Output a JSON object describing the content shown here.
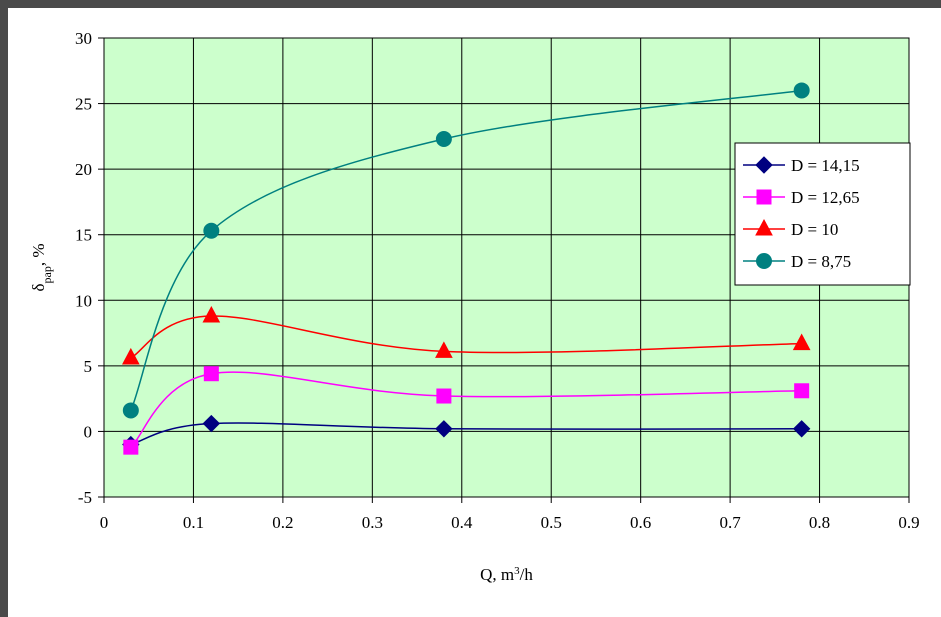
{
  "chart_data": {
    "type": "line",
    "title": "",
    "xlabel": "Q, m³/h",
    "xlabel_parts": {
      "base": "Q, m",
      "sup": "3",
      "tail": "/h"
    },
    "ylabel": "δpap, %",
    "ylabel_parts": {
      "base": "δ",
      "sub": "pap",
      "tail": ", %"
    },
    "xlim": [
      0,
      0.9
    ],
    "ylim": [
      -5,
      30
    ],
    "x_ticks": [
      0,
      0.1,
      0.2,
      0.3,
      0.4,
      0.5,
      0.6,
      0.7,
      0.8,
      0.9
    ],
    "x_tick_labels": [
      "0",
      "0.1",
      "0.2",
      "0.3",
      "0.4",
      "0.5",
      "0.6",
      "0.7",
      "0.8",
      "0.9"
    ],
    "y_ticks": [
      -5,
      0,
      5,
      10,
      15,
      20,
      25,
      30
    ],
    "y_tick_labels": [
      "-5",
      "0",
      "5",
      "10",
      "15",
      "20",
      "25",
      "30"
    ],
    "grid": true,
    "plot_background": "#ccffcc",
    "legend_position": "right",
    "series": [
      {
        "name": "D = 14,15",
        "color": "#000080",
        "marker": "diamond",
        "x": [
          0.03,
          0.12,
          0.38,
          0.78
        ],
        "y": [
          -1.0,
          0.6,
          0.2,
          0.2
        ]
      },
      {
        "name": "D = 12,65",
        "color": "#ff00ff",
        "marker": "square",
        "x": [
          0.03,
          0.12,
          0.38,
          0.78
        ],
        "y": [
          -1.2,
          4.4,
          2.7,
          3.1
        ]
      },
      {
        "name": "D = 10",
        "color": "#ff0000",
        "marker": "triangle",
        "x": [
          0.03,
          0.12,
          0.38,
          0.78
        ],
        "y": [
          5.6,
          8.8,
          6.1,
          6.7
        ]
      },
      {
        "name": "D = 8,75",
        "color": "#008080",
        "marker": "circle",
        "x": [
          0.03,
          0.12,
          0.38,
          0.78
        ],
        "y": [
          1.6,
          15.3,
          22.3,
          26.0
        ]
      }
    ]
  }
}
